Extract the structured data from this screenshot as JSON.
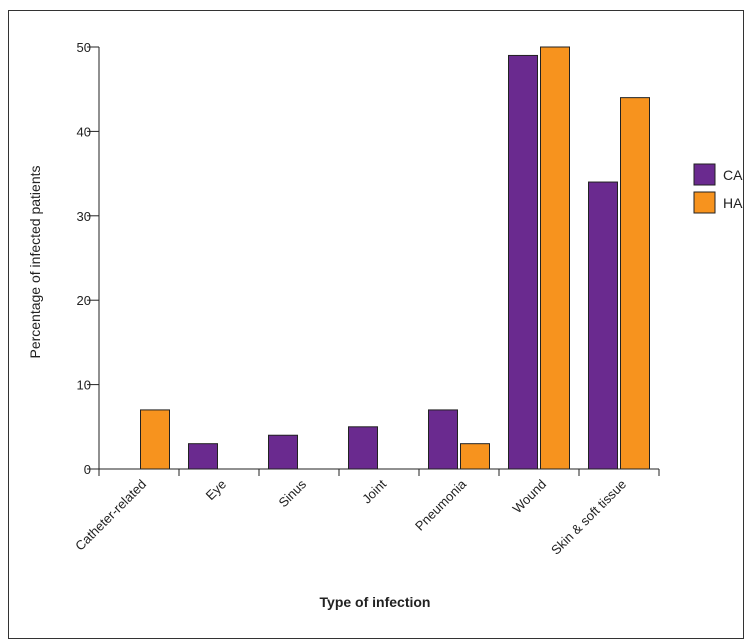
{
  "chart_data": {
    "type": "bar",
    "title": "",
    "xlabel": "Type of infection",
    "ylabel": "Percentage of infected patients",
    "categories": [
      "Catheter-related",
      "Eye",
      "Sinus",
      "Joint",
      "Pneumonia",
      "Wound",
      "Skin & soft tissue"
    ],
    "series": [
      {
        "name": "CA",
        "color": "#6a2a8f",
        "values": [
          0,
          3,
          4,
          5,
          7,
          49,
          34
        ]
      },
      {
        "name": "HA",
        "color": "#f7931e",
        "values": [
          7,
          0,
          0,
          0,
          3,
          50,
          44
        ]
      }
    ],
    "yticks": [
      0,
      10,
      20,
      30,
      40,
      50
    ],
    "ylim": [
      0,
      50
    ],
    "grid": false,
    "legend_position": "right"
  }
}
